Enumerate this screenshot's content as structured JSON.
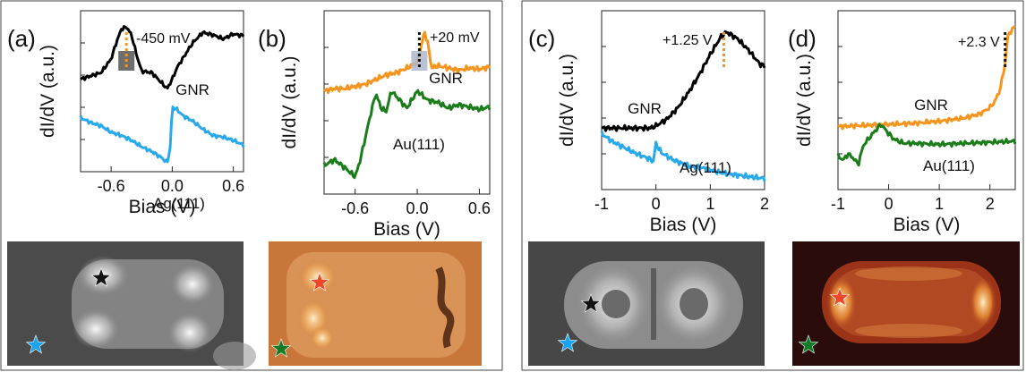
{
  "panels": {
    "a": {
      "label": "(a)"
    },
    "b": {
      "label": "(b)"
    },
    "c": {
      "label": "(c)"
    },
    "d": {
      "label": "(d)"
    }
  },
  "colors": {
    "black_curve": "#000000",
    "blue_curve": "#29a9ec",
    "orange_curve": "#f7941d",
    "green_curve": "#1a7d1a",
    "peak_shade_a": "#555555",
    "peak_shade_b": "#aeb9cc",
    "marker_orange": "#f7941d",
    "star_black": "#111111",
    "star_blue": "#1aa3ef",
    "star_red": "#f0462a",
    "star_green": "#137a28"
  },
  "icons": {
    "stars": [
      "star-icon"
    ]
  },
  "chart_data": [
    {
      "panel": "(a)",
      "type": "line",
      "xlabel": "Bias (V)",
      "ylabel": "dI/dV (a.u.)",
      "xlim": [
        -0.9,
        0.7
      ],
      "xticks": [
        -0.6,
        0.0,
        0.6
      ],
      "xtick_labels": [
        "-0.6",
        "0.0",
        "0.6"
      ],
      "annotation": "-450 mV",
      "annotation_x": -0.45,
      "series": [
        {
          "name": "GNR",
          "color": "#000000",
          "x": [
            -0.9,
            -0.8,
            -0.7,
            -0.6,
            -0.55,
            -0.5,
            -0.45,
            -0.4,
            -0.35,
            -0.3,
            -0.2,
            -0.1,
            -0.05,
            0.0,
            0.05,
            0.1,
            0.2,
            0.3,
            0.4,
            0.5,
            0.6,
            0.7
          ],
          "y": [
            0.3,
            0.34,
            0.38,
            0.55,
            0.75,
            0.92,
            0.95,
            0.85,
            0.6,
            0.4,
            0.38,
            0.25,
            0.18,
            0.3,
            0.45,
            0.55,
            0.75,
            0.88,
            0.85,
            0.8,
            0.86,
            0.84
          ]
        },
        {
          "name": "Ag(111)",
          "color": "#29a9ec",
          "x": [
            -0.9,
            -0.8,
            -0.7,
            -0.6,
            -0.5,
            -0.4,
            -0.3,
            -0.2,
            -0.1,
            -0.05,
            -0.02,
            0.0,
            0.05,
            0.1,
            0.2,
            0.3,
            0.4,
            0.5,
            0.6,
            0.7
          ],
          "y": [
            -0.18,
            -0.24,
            -0.28,
            -0.36,
            -0.4,
            -0.46,
            -0.54,
            -0.6,
            -0.68,
            -0.74,
            -0.55,
            -0.05,
            -0.08,
            -0.15,
            -0.22,
            -0.32,
            -0.4,
            -0.42,
            -0.46,
            -0.52
          ]
        }
      ]
    },
    {
      "panel": "(b)",
      "type": "line",
      "xlabel": "Bias (V)",
      "ylabel": "dI/dV (a.u.)",
      "xlim": [
        -0.9,
        0.7
      ],
      "xticks": [
        -0.6,
        0.0,
        0.6
      ],
      "xtick_labels": [
        "-0.6",
        "0.0",
        "0.6"
      ],
      "annotation": "+20 mV",
      "annotation_x": 0.02,
      "series": [
        {
          "name": "GNR",
          "color": "#f7941d",
          "x": [
            -0.9,
            -0.8,
            -0.7,
            -0.6,
            -0.5,
            -0.4,
            -0.3,
            -0.2,
            -0.1,
            0.0,
            0.04,
            0.07,
            0.1,
            0.14,
            0.2,
            0.3,
            0.4,
            0.5,
            0.6,
            0.7
          ],
          "y": [
            0.2,
            0.22,
            0.22,
            0.24,
            0.26,
            0.3,
            0.34,
            0.36,
            0.4,
            0.45,
            0.6,
            0.72,
            0.62,
            0.4,
            0.42,
            0.4,
            0.38,
            0.4,
            0.39,
            0.41
          ]
        },
        {
          "name": "Au(111)",
          "color": "#1a7d1a",
          "x": [
            -0.9,
            -0.8,
            -0.7,
            -0.6,
            -0.55,
            -0.5,
            -0.45,
            -0.4,
            -0.35,
            -0.3,
            -0.25,
            -0.2,
            -0.1,
            0.0,
            0.1,
            0.2,
            0.3,
            0.4,
            0.5,
            0.6,
            0.7
          ],
          "y": [
            -0.45,
            -0.4,
            -0.47,
            -0.55,
            -0.4,
            -0.2,
            0.0,
            0.18,
            0.05,
            0.02,
            0.2,
            0.15,
            0.05,
            0.2,
            0.12,
            0.1,
            0.05,
            0.08,
            0.06,
            0.04,
            0.06
          ]
        }
      ]
    },
    {
      "panel": "(c)",
      "type": "line",
      "xlabel": "Bias (V)",
      "ylabel": "dI/dV (a.u.)",
      "xlim": [
        -1.0,
        2.0
      ],
      "xticks": [
        -1,
        0,
        1,
        2
      ],
      "xtick_labels": [
        "-1",
        "0",
        "1",
        "2"
      ],
      "annotation": "+1.25 V",
      "annotation_x": 1.25,
      "series": [
        {
          "name": "GNR",
          "color": "#000000",
          "x": [
            -1.0,
            -0.5,
            -0.1,
            0.0,
            0.2,
            0.4,
            0.6,
            0.8,
            1.0,
            1.2,
            1.3,
            1.5,
            1.7,
            1.9,
            2.0
          ],
          "y": [
            0.0,
            0.0,
            0.0,
            0.02,
            0.08,
            0.18,
            0.32,
            0.48,
            0.66,
            0.82,
            0.86,
            0.8,
            0.7,
            0.58,
            0.55
          ]
        },
        {
          "name": "Ag(111)",
          "color": "#29a9ec",
          "x": [
            -1.0,
            -0.8,
            -0.6,
            -0.4,
            -0.2,
            -0.1,
            -0.05,
            0.0,
            0.1,
            0.3,
            0.6,
            0.9,
            1.2,
            1.5,
            1.8,
            2.0
          ],
          "y": [
            -0.05,
            -0.12,
            -0.17,
            -0.22,
            -0.26,
            -0.28,
            -0.3,
            -0.14,
            -0.22,
            -0.28,
            -0.34,
            -0.36,
            -0.4,
            -0.42,
            -0.44,
            -0.45
          ]
        }
      ]
    },
    {
      "panel": "(d)",
      "type": "line",
      "xlabel": "Bias (V)",
      "ylabel": "dI/dV (a.u.)",
      "xlim": [
        -1.0,
        2.5
      ],
      "xticks": [
        -1,
        0,
        1,
        2
      ],
      "xtick_labels": [
        "-1",
        "0",
        "1",
        "2"
      ],
      "annotation": "+2.3 V",
      "annotation_x": 2.3,
      "series": [
        {
          "name": "GNR",
          "color": "#f7941d",
          "x": [
            -1.0,
            -0.5,
            0.0,
            0.5,
            1.0,
            1.5,
            1.8,
            2.0,
            2.1,
            2.2,
            2.3,
            2.35,
            2.4,
            2.5
          ],
          "y": [
            0.0,
            0.01,
            0.02,
            0.03,
            0.05,
            0.08,
            0.12,
            0.18,
            0.24,
            0.35,
            0.6,
            0.85,
            0.9,
            0.95
          ]
        },
        {
          "name": "Au(111)",
          "color": "#1a7d1a",
          "x": [
            -1.0,
            -0.9,
            -0.8,
            -0.7,
            -0.6,
            -0.5,
            -0.3,
            -0.15,
            -0.05,
            0.1,
            0.3,
            0.5,
            1.0,
            1.5,
            2.0,
            2.5
          ],
          "y": [
            -0.28,
            -0.32,
            -0.26,
            -0.3,
            -0.36,
            -0.18,
            -0.06,
            0.02,
            -0.04,
            -0.12,
            -0.16,
            -0.16,
            -0.17,
            -0.16,
            -0.15,
            -0.14
          ]
        }
      ]
    }
  ]
}
